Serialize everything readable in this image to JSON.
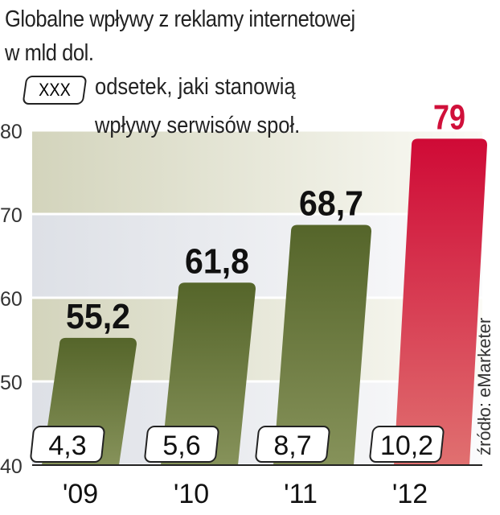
{
  "chart_data": {
    "type": "bar",
    "title": "Globalne wpływy z reklamy internetowej",
    "subtitle": "w mld dol.",
    "legend": {
      "box_label": "XXX",
      "text_line1": "odsetek, jaki stanowią",
      "text_line2": "wpływy serwisów społ."
    },
    "categories": [
      "'09",
      "'10",
      "'11",
      "'12"
    ],
    "values": [
      55.2,
      61.8,
      68.7,
      79
    ],
    "value_labels": [
      "55,2",
      "61,8",
      "68,7",
      "79"
    ],
    "share_labels": [
      "4,3",
      "5,6",
      "8,7",
      "10,2"
    ],
    "share_values": [
      4.3,
      5.6,
      8.7,
      10.2
    ],
    "ylim": [
      40,
      80
    ],
    "yticks": [
      "40",
      "50",
      "60",
      "70",
      "80"
    ],
    "source": "źródło: eMarketer",
    "grid": true,
    "colors": {
      "bar": "#5a6a2a",
      "highlight": "#d0103a",
      "highlight_label": "#d0103a"
    }
  }
}
